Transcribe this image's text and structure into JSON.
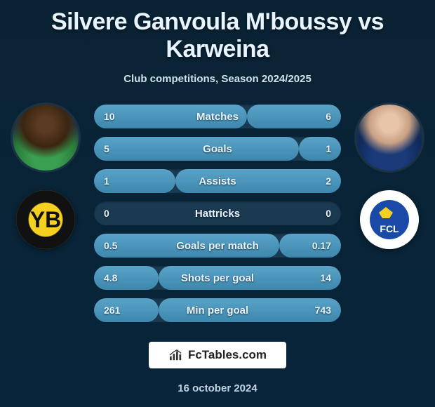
{
  "title": "Silvere Ganvoula M'boussy vs Karweina",
  "subtitle": "Club competitions, Season 2024/2025",
  "branding_text": "FcTables.com",
  "date": "16 october 2024",
  "colors": {
    "bar_bg": "#1a3a52",
    "fill_top": "#5aa3c8",
    "fill_bottom": "#3d87ad",
    "text": "#e8f4ff"
  },
  "player_left": {
    "name": "Silvere Ganvoula M'boussy",
    "club": "BSC Young Boys"
  },
  "player_right": {
    "name": "Karweina",
    "club": "FC Luzern"
  },
  "stats": [
    {
      "label": "Matches",
      "left_val": "10",
      "right_val": "6",
      "left_pct": 62,
      "right_pct": 38
    },
    {
      "label": "Goals",
      "left_val": "5",
      "right_val": "1",
      "left_pct": 83,
      "right_pct": 17
    },
    {
      "label": "Assists",
      "left_val": "1",
      "right_val": "2",
      "left_pct": 33,
      "right_pct": 67
    },
    {
      "label": "Hattricks",
      "left_val": "0",
      "right_val": "0",
      "left_pct": 0,
      "right_pct": 0
    },
    {
      "label": "Goals per match",
      "left_val": "0.5",
      "right_val": "0.17",
      "left_pct": 75,
      "right_pct": 25
    },
    {
      "label": "Shots per goal",
      "left_val": "4.8",
      "right_val": "14",
      "left_pct": 26,
      "right_pct": 74
    },
    {
      "label": "Min per goal",
      "left_val": "261",
      "right_val": "743",
      "left_pct": 26,
      "right_pct": 74
    }
  ]
}
